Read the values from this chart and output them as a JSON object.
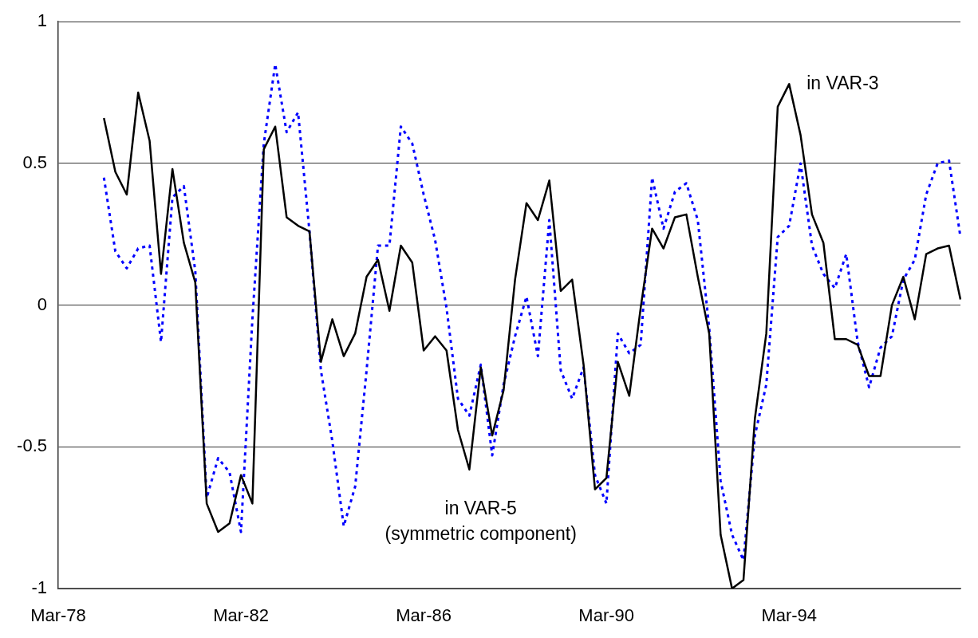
{
  "chart_data": {
    "type": "line",
    "categories": [
      "Mar-78",
      null,
      null,
      null,
      null,
      null,
      null,
      null,
      null,
      null,
      null,
      null,
      null,
      null,
      null,
      null,
      "Mar-82",
      null,
      null,
      null,
      null,
      null,
      null,
      null,
      null,
      null,
      null,
      null,
      null,
      null,
      null,
      null,
      "Mar-86",
      null,
      null,
      null,
      null,
      null,
      null,
      null,
      null,
      null,
      null,
      null,
      null,
      null,
      null,
      null,
      "Mar-90",
      null,
      null,
      null,
      null,
      null,
      null,
      null,
      null,
      null,
      null,
      null,
      null,
      null,
      null,
      null,
      "Mar-94",
      null,
      null,
      null,
      null,
      null,
      null,
      null,
      null,
      null,
      null,
      null,
      null,
      null,
      null,
      null
    ],
    "series": [
      {
        "name": "in VAR-3",
        "color": "#000000",
        "line_style": "solid",
        "values": [
          null,
          null,
          null,
          null,
          0.66,
          0.47,
          0.39,
          0.75,
          0.58,
          0.11,
          0.48,
          0.22,
          0.08,
          -0.7,
          -0.8,
          -0.77,
          -0.6,
          -0.7,
          0.55,
          0.63,
          0.31,
          0.28,
          0.26,
          -0.2,
          -0.05,
          -0.18,
          -0.1,
          0.1,
          0.16,
          -0.02,
          0.21,
          0.15,
          -0.16,
          -0.11,
          -0.16,
          -0.44,
          -0.58,
          -0.22,
          -0.46,
          -0.3,
          0.09,
          0.36,
          0.3,
          0.44,
          0.05,
          0.09,
          -0.21,
          -0.65,
          -0.61,
          -0.2,
          -0.32,
          -0.01,
          0.27,
          0.2,
          0.31,
          0.32,
          0.1,
          -0.1,
          -0.81,
          -1,
          -0.97,
          -0.4,
          -0.1,
          0.7,
          0.78,
          0.6,
          0.32,
          0.22,
          -0.12,
          -0.12,
          -0.14,
          -0.25,
          -0.25,
          0,
          0.1,
          -0.05,
          0.18,
          0.2,
          0.21,
          0.02
        ]
      },
      {
        "name": "in VAR-5\n(symmetric component)",
        "color": "#0000ff",
        "line_style": "dotted",
        "values": [
          null,
          null,
          null,
          null,
          0.45,
          0.19,
          0.13,
          0.2,
          0.21,
          -0.13,
          0.38,
          0.42,
          0.12,
          -0.68,
          -0.54,
          -0.59,
          -0.8,
          -0.05,
          0.57,
          0.85,
          0.61,
          0.68,
          0.26,
          -0.23,
          -0.48,
          -0.78,
          -0.64,
          -0.23,
          0.21,
          0.21,
          0.63,
          0.57,
          0.39,
          0.23,
          -0.01,
          -0.33,
          -0.39,
          -0.21,
          -0.53,
          -0.28,
          -0.11,
          0.03,
          -0.18,
          0.3,
          -0.23,
          -0.33,
          -0.22,
          -0.6,
          -0.7,
          -0.1,
          -0.17,
          -0.14,
          0.45,
          0.27,
          0.4,
          0.43,
          0.3,
          -0.08,
          -0.62,
          -0.81,
          -0.9,
          -0.46,
          -0.28,
          0.24,
          0.28,
          0.5,
          0.21,
          0.11,
          0.06,
          0.18,
          -0.13,
          -0.29,
          -0.15,
          -0.11,
          0.09,
          0.16,
          0.39,
          0.5,
          0.51,
          0.24
        ]
      }
    ],
    "ylim": [
      -1,
      1
    ],
    "yticks": [
      -1,
      -0.5,
      0,
      0.5,
      1
    ],
    "grid": "y",
    "legend": false,
    "marker": "none"
  }
}
